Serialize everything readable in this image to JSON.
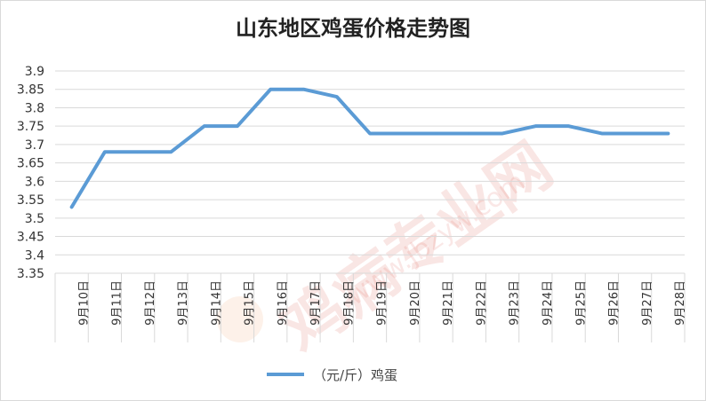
{
  "chart_data": {
    "type": "line",
    "title": "山东地区鸡蛋价格走势图",
    "categories": [
      "9月10日",
      "9月11日",
      "9月12日",
      "9月13日",
      "9月14日",
      "9月15日",
      "9月16日",
      "9月17日",
      "9月18日",
      "9月19日",
      "9月20日",
      "9月21日",
      "9月22日",
      "9月23日",
      "9月24日",
      "9月25日",
      "9月26日",
      "9月27日",
      "9月28日"
    ],
    "series": [
      {
        "name": "（元/斤）鸡蛋",
        "values": [
          3.53,
          3.68,
          3.68,
          3.68,
          3.75,
          3.75,
          3.85,
          3.85,
          3.83,
          3.73,
          3.73,
          3.73,
          3.73,
          3.73,
          3.75,
          3.75,
          3.73,
          3.73,
          3.73
        ]
      }
    ],
    "ylim": [
      3.35,
      3.9
    ],
    "yticks": [
      "3.35",
      "3.4",
      "3.45",
      "3.5",
      "3.55",
      "3.6",
      "3.65",
      "3.7",
      "3.75",
      "3.8",
      "3.85",
      "3.9"
    ],
    "grid": true,
    "legend_position": "bottom",
    "series_color": "#5b9bd5",
    "grid_color": "#d9d9d9"
  },
  "watermark": {
    "text_cn": "鸡病专业网",
    "text_url": "www.jbzyw.com"
  }
}
